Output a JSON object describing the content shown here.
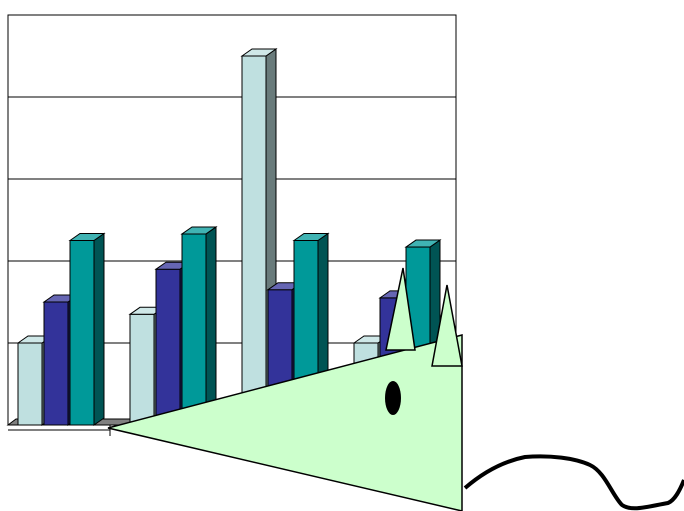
{
  "chart_data": {
    "type": "bar",
    "style": "3d-clustered-column",
    "title": "",
    "xlabel": "",
    "ylabel": "",
    "grid": true,
    "legend": "none",
    "ylim": [
      0,
      5
    ],
    "categories": [
      "",
      "",
      "",
      ""
    ],
    "series": [
      {
        "color": "#BFE0E0",
        "values": [
          1.0,
          1.35,
          4.5,
          1.0
        ]
      },
      {
        "color": "#33339A",
        "values": [
          1.5,
          1.9,
          1.65,
          1.55
        ]
      },
      {
        "color": "#009999",
        "values": [
          2.25,
          2.33,
          2.25,
          2.17
        ]
      }
    ]
  },
  "overlay": {
    "mouse_body_color": "#CCFFCC",
    "mouse_outline_color": "#000000",
    "tail_color": "#000000"
  }
}
